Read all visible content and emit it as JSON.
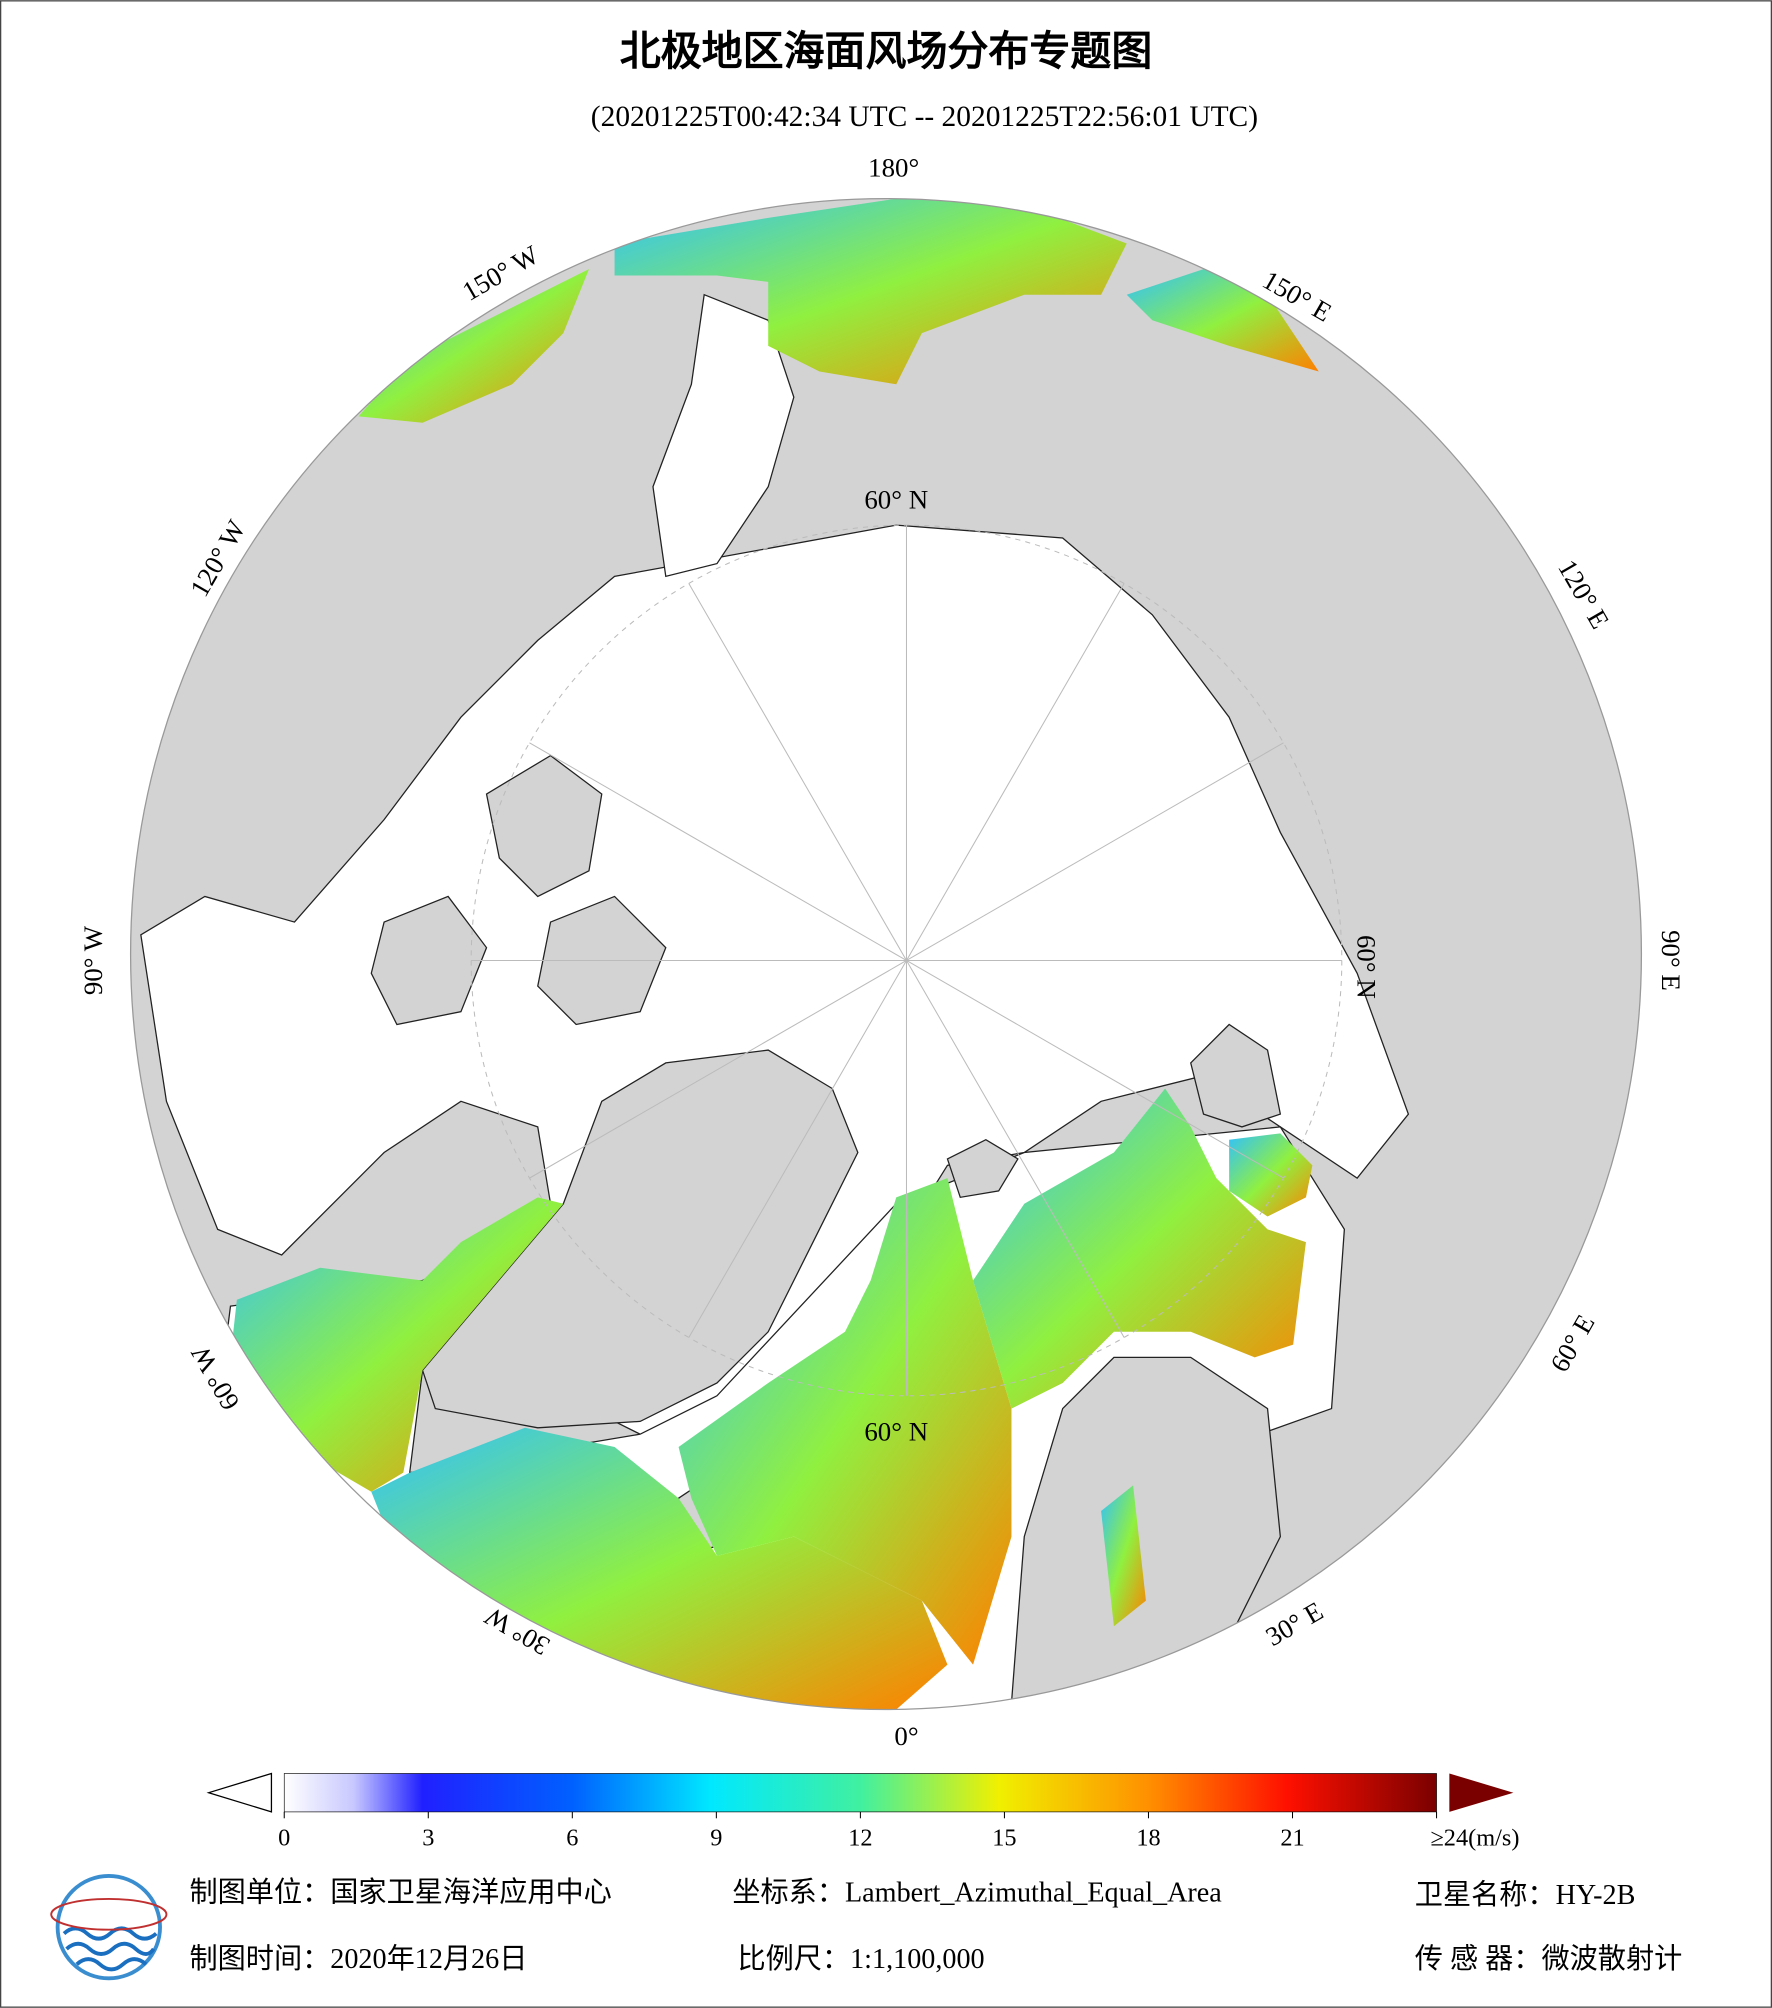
{
  "title": "北极地区海面风场分布专题图",
  "subtitle": "(20201225T00:42:34 UTC -- 20201225T22:56:01 UTC)",
  "graticule_labels": [
    "180°",
    "150° E",
    "120° E",
    "90° E",
    "60° E",
    "30° E",
    "0°",
    "30° W",
    "60° W",
    "90° W",
    "120° W",
    "150° W",
    "60° N",
    "60° N",
    "60° N"
  ],
  "colorbar": {
    "lim": [
      0,
      24
    ],
    "ticks": [
      0,
      3,
      6,
      9,
      12,
      15,
      18,
      21,
      {
        "value": 24,
        "label": "≥24(m/s)"
      }
    ]
  },
  "footer": {
    "unit": "制图单位：国家卫星海洋应用中心",
    "time": "制图时间：2020年12月26日",
    "crs": "坐标系：Lambert_Azimuthal_Equal_Area",
    "scale": "比例尺：1:1,100,000",
    "satellite": "卫星名称：HY-2B",
    "sensor": "传 感 器：微波散射计"
  }
}
